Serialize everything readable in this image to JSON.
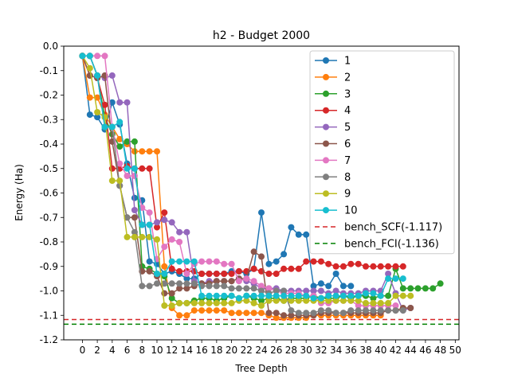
{
  "chart_data": {
    "type": "line",
    "title": "h2 - Budget  2000",
    "xlabel": "Tree Depth",
    "ylabel": "Energy (Ha)",
    "xlim": [
      -2.5,
      50.5
    ],
    "ylim": [
      -1.2,
      0.0
    ],
    "xticks": [
      0,
      2,
      4,
      6,
      8,
      10,
      12,
      14,
      16,
      18,
      20,
      22,
      24,
      26,
      28,
      30,
      32,
      34,
      36,
      38,
      40,
      42,
      44,
      46,
      48,
      50
    ],
    "xtick_labels": [
      "0",
      "2",
      "4",
      "6",
      "8",
      "10",
      "12",
      "14",
      "16",
      "18",
      "20",
      "22",
      "24",
      "26",
      "28",
      "30",
      "32",
      "34",
      "36",
      "38",
      "40",
      "42",
      "44",
      "46",
      "48",
      "50"
    ],
    "yticks": [
      0.0,
      -0.1,
      -0.2,
      -0.3,
      -0.4,
      -0.5,
      -0.6,
      -0.7,
      -0.8,
      -0.9,
      -1.0,
      -1.1,
      -1.2
    ],
    "ytick_labels": [
      "0.0",
      "-0.1",
      "-0.2",
      "-0.3",
      "-0.4",
      "-0.5",
      "-0.6",
      "-0.7",
      "-0.8",
      "-0.9",
      "-1.0",
      "-1.1",
      "-1.2"
    ],
    "grid": false,
    "legend_position": "upper-right",
    "series": [
      {
        "name": "1",
        "color": "#1f77b4",
        "x": [
          0,
          1,
          2,
          3,
          4,
          5,
          6,
          7,
          8,
          9,
          10,
          11,
          12,
          13,
          14,
          15,
          16,
          17,
          18,
          19,
          20,
          21,
          22,
          23,
          24,
          25,
          26,
          27,
          28,
          29,
          30,
          31,
          32,
          33,
          34,
          35,
          36
        ],
        "y": [
          -0.04,
          -0.28,
          -0.29,
          -0.34,
          -0.23,
          -0.32,
          -0.48,
          -0.62,
          -0.63,
          -0.88,
          -0.89,
          -0.93,
          -0.92,
          -0.93,
          -0.95,
          -0.95,
          -0.93,
          -0.93,
          -0.93,
          -0.93,
          -0.92,
          -0.92,
          -0.93,
          -0.91,
          -0.68,
          -0.89,
          -0.88,
          -0.85,
          -0.74,
          -0.77,
          -0.77,
          -0.98,
          -0.97,
          -0.98,
          -0.93,
          -0.98,
          -0.98
        ]
      },
      {
        "name": "2",
        "color": "#ff7f0e",
        "x": [
          0,
          1,
          2,
          3,
          4,
          5,
          6,
          7,
          8,
          9,
          10,
          11,
          12,
          13,
          14,
          15,
          16,
          17,
          18,
          19,
          20,
          21,
          22,
          23,
          24,
          25,
          26,
          27,
          28,
          29,
          30,
          31,
          32,
          33,
          34,
          35,
          36,
          37,
          38,
          39,
          40
        ],
        "y": [
          -0.04,
          -0.21,
          -0.21,
          -0.28,
          -0.33,
          -0.38,
          -0.4,
          -0.43,
          -0.43,
          -0.43,
          -0.43,
          -0.9,
          -1.07,
          -1.1,
          -1.1,
          -1.08,
          -1.08,
          -1.08,
          -1.08,
          -1.08,
          -1.09,
          -1.09,
          -1.09,
          -1.09,
          -1.09,
          -1.1,
          -1.11,
          -1.11,
          -1.11,
          -1.11,
          -1.11,
          -1.1,
          -1.1,
          -1.1,
          -1.1,
          -1.1,
          -1.1,
          -1.1,
          -1.1,
          -1.1,
          -1.1
        ]
      },
      {
        "name": "3",
        "color": "#2ca02c",
        "x": [
          0,
          1,
          2,
          3,
          4,
          5,
          6,
          7,
          8,
          9,
          10,
          11,
          12,
          13,
          14,
          15,
          16,
          17,
          18,
          19,
          20,
          21,
          22,
          23,
          24,
          25,
          26,
          27,
          28,
          29,
          30,
          31,
          32,
          33,
          34,
          35,
          36,
          37,
          38,
          39,
          40,
          41,
          42,
          43,
          44,
          45,
          46,
          47,
          48
        ],
        "y": [
          -0.04,
          -0.04,
          -0.12,
          -0.29,
          -0.36,
          -0.41,
          -0.39,
          -0.39,
          -0.9,
          -0.91,
          -0.93,
          -0.94,
          -1.03,
          -1.05,
          -1.05,
          -1.04,
          -1.03,
          -1.03,
          -1.04,
          -1.03,
          -1.02,
          -1.03,
          -1.02,
          -1.03,
          -1.04,
          -1.03,
          -1.03,
          -1.04,
          -1.03,
          -1.03,
          -1.03,
          -1.02,
          -1.03,
          -1.03,
          -1.03,
          -1.02,
          -1.03,
          -1.02,
          -1.02,
          -1.03,
          -1.02,
          -1.02,
          -0.91,
          -0.99,
          -0.99,
          -0.99,
          -0.99,
          -0.99,
          -0.97
        ]
      },
      {
        "name": "4",
        "color": "#d62728",
        "x": [
          0,
          1,
          2,
          3,
          4,
          5,
          6,
          7,
          8,
          9,
          10,
          11,
          12,
          13,
          14,
          15,
          16,
          17,
          18,
          19,
          20,
          21,
          22,
          23,
          24,
          25,
          26,
          27,
          28,
          29,
          30,
          31,
          32,
          33,
          34,
          35,
          36,
          37,
          38,
          39,
          40,
          41,
          42,
          43
        ],
        "y": [
          -0.04,
          -0.12,
          -0.13,
          -0.24,
          -0.5,
          -0.5,
          -0.49,
          -0.5,
          -0.5,
          -0.5,
          -0.74,
          -0.68,
          -0.91,
          -0.92,
          -0.92,
          -0.92,
          -0.93,
          -0.93,
          -0.93,
          -0.93,
          -0.93,
          -0.92,
          -0.92,
          -0.91,
          -0.92,
          -0.93,
          -0.93,
          -0.91,
          -0.91,
          -0.91,
          -0.88,
          -0.88,
          -0.88,
          -0.89,
          -0.9,
          -0.9,
          -0.89,
          -0.89,
          -0.9,
          -0.9,
          -0.9,
          -0.9,
          -0.9,
          -0.9
        ]
      },
      {
        "name": "5",
        "color": "#9467bd",
        "x": [
          0,
          1,
          2,
          3,
          4,
          5,
          6,
          7,
          8,
          9,
          10,
          11,
          12,
          13,
          14,
          15,
          16,
          17,
          18,
          19,
          20,
          21,
          22,
          23,
          24,
          25,
          26,
          27,
          28,
          29,
          30,
          31,
          32,
          33,
          34,
          35,
          36,
          37,
          38,
          39,
          40,
          41,
          42,
          43,
          44
        ],
        "y": [
          -0.04,
          -0.04,
          -0.12,
          -0.13,
          -0.12,
          -0.23,
          -0.23,
          -0.67,
          -0.73,
          -0.73,
          -0.72,
          -0.71,
          -0.72,
          -0.76,
          -0.76,
          -0.96,
          -0.97,
          -0.96,
          -0.96,
          -0.96,
          -0.96,
          -0.95,
          -0.96,
          -0.97,
          -0.99,
          -0.99,
          -0.99,
          -1.0,
          -1.0,
          -1.0,
          -1.0,
          -1.0,
          -1.0,
          -1.01,
          -1.0,
          -1.01,
          -1.01,
          -1.01,
          -1.0,
          -1.0,
          -1.0,
          -0.93,
          -1.01,
          -1.08,
          -1.07
        ]
      },
      {
        "name": "6",
        "color": "#8c564b",
        "x": [
          0,
          1,
          2,
          3,
          4,
          5,
          6,
          7,
          8,
          9,
          10,
          11,
          12,
          13,
          14,
          15,
          16,
          17,
          18,
          19,
          20,
          21,
          22,
          23,
          24,
          25,
          26,
          27,
          28,
          29,
          30,
          31,
          32,
          33,
          34,
          35,
          36,
          37,
          38,
          39,
          40,
          41,
          42,
          43,
          44
        ],
        "y": [
          -0.04,
          -0.12,
          -0.13,
          -0.12,
          -0.39,
          -0.57,
          -0.7,
          -0.7,
          -0.92,
          -0.92,
          -0.94,
          -1.01,
          -1.01,
          -0.99,
          -0.99,
          -0.98,
          -0.97,
          -0.97,
          -0.96,
          -0.96,
          -0.96,
          -0.95,
          -0.95,
          -0.84,
          -0.86,
          -1.09,
          -1.09,
          -1.1,
          -1.1,
          -1.1,
          -1.1,
          -1.1,
          -1.09,
          -1.09,
          -1.09,
          -1.09,
          -1.09,
          -1.09,
          -1.09,
          -1.09,
          -1.09,
          -1.08,
          -1.08,
          -1.07,
          -1.07
        ]
      },
      {
        "name": "7",
        "color": "#e377c2",
        "x": [
          0,
          1,
          2,
          3,
          4,
          5,
          6,
          7,
          8,
          9,
          10,
          11,
          12,
          13,
          14,
          15,
          16,
          17,
          18,
          19,
          20,
          21,
          22,
          23,
          24,
          25,
          26,
          27,
          28,
          29,
          30,
          31,
          32,
          33,
          34,
          35,
          36,
          37,
          38,
          39,
          40,
          41,
          42
        ],
        "y": [
          -0.04,
          -0.04,
          -0.04,
          -0.04,
          -0.33,
          -0.48,
          -0.53,
          -0.53,
          -0.66,
          -0.68,
          -0.87,
          -0.82,
          -0.79,
          -0.8,
          -0.93,
          -0.89,
          -0.88,
          -0.88,
          -0.88,
          -0.89,
          -0.89,
          -0.96,
          -0.95,
          -0.96,
          -0.98,
          -0.99,
          -1.0,
          -1.01,
          -1.01,
          -1.01,
          -1.02,
          -1.02,
          -1.05,
          -1.05,
          -1.04,
          -1.04,
          -1.04,
          -1.06,
          -1.06,
          -1.06,
          -1.06,
          -1.06,
          -1.06
        ]
      },
      {
        "name": "8",
        "color": "#7f7f7f",
        "x": [
          0,
          1,
          2,
          3,
          4,
          5,
          6,
          7,
          8,
          9,
          10,
          11,
          12,
          13,
          14,
          15,
          16,
          17,
          18,
          19,
          20,
          21,
          22,
          23,
          24,
          25,
          26,
          27,
          28,
          29,
          30,
          31,
          32,
          33,
          34,
          35,
          36,
          37,
          38,
          39,
          40,
          41,
          42,
          43
        ],
        "y": [
          -0.04,
          -0.04,
          -0.12,
          -0.33,
          -0.33,
          -0.57,
          -0.7,
          -0.76,
          -0.98,
          -0.98,
          -0.97,
          -0.97,
          -0.97,
          -0.97,
          -0.97,
          -0.97,
          -0.98,
          -0.98,
          -0.98,
          -0.98,
          -0.99,
          -0.99,
          -0.99,
          -0.99,
          -1.0,
          -1.01,
          -1.0,
          -1.0,
          -1.08,
          -1.09,
          -1.09,
          -1.09,
          -1.08,
          -1.08,
          -1.09,
          -1.09,
          -1.08,
          -1.08,
          -1.08,
          -1.08,
          -1.08,
          -1.08,
          -1.08,
          -1.08
        ]
      },
      {
        "name": "9",
        "color": "#bcbd22",
        "x": [
          0,
          1,
          2,
          3,
          4,
          5,
          6,
          7,
          8,
          9,
          10,
          11,
          12,
          13,
          14,
          15,
          16,
          17,
          18,
          19,
          20,
          21,
          22,
          23,
          24,
          25,
          26,
          27,
          28,
          29,
          30,
          31,
          32,
          33,
          34,
          35,
          36,
          37,
          38,
          39,
          40,
          41,
          42,
          43,
          44
        ],
        "y": [
          -0.04,
          -0.09,
          -0.27,
          -0.29,
          -0.55,
          -0.55,
          -0.78,
          -0.78,
          -0.78,
          -0.78,
          -0.79,
          -1.06,
          -1.06,
          -1.05,
          -1.05,
          -1.05,
          -1.05,
          -1.05,
          -1.05,
          -1.05,
          -1.05,
          -1.04,
          -1.04,
          -1.05,
          -1.06,
          -1.04,
          -1.04,
          -1.04,
          -1.04,
          -1.04,
          -1.04,
          -1.04,
          -1.04,
          -1.04,
          -1.04,
          -1.04,
          -1.04,
          -1.04,
          -1.05,
          -1.05,
          -1.05,
          -1.05,
          -1.02,
          -1.02,
          -1.02
        ]
      },
      {
        "name": "10",
        "color": "#17becf",
        "x": [
          0,
          1,
          2,
          3,
          4,
          5,
          6,
          7,
          8,
          9,
          10,
          11,
          12,
          13,
          14,
          15,
          16,
          17,
          18,
          19,
          20,
          21,
          22,
          23,
          24,
          25,
          26,
          27,
          28,
          29,
          30,
          31,
          32,
          33,
          34,
          35,
          36,
          37,
          38,
          39,
          40,
          41,
          42,
          43
        ],
        "y": [
          -0.04,
          -0.04,
          -0.12,
          -0.33,
          -0.33,
          -0.31,
          -0.5,
          -0.5,
          -0.73,
          -0.73,
          -0.93,
          -0.93,
          -0.88,
          -0.88,
          -0.88,
          -0.88,
          -1.02,
          -1.02,
          -1.02,
          -1.02,
          -1.02,
          -1.03,
          -1.02,
          -1.02,
          -1.02,
          -1.02,
          -1.02,
          -1.02,
          -1.02,
          -1.02,
          -1.02,
          -1.03,
          -1.03,
          -1.02,
          -1.02,
          -1.02,
          -1.02,
          -1.02,
          -1.01,
          -1.01,
          -1.02,
          -0.95,
          -0.95,
          -0.95
        ]
      }
    ],
    "reference_lines": [
      {
        "name": "bench_SCF(-1.117)",
        "value": -1.117,
        "color": "#d62728",
        "style": "dashed"
      },
      {
        "name": "bench_FCI(-1.136)",
        "value": -1.136,
        "color": "#008000",
        "style": "dashed"
      }
    ]
  }
}
